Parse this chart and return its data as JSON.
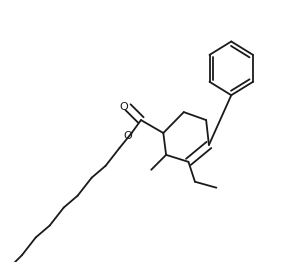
{
  "bg_color": "#ffffff",
  "line_color": "#1a1a1a",
  "line_width": 1.3,
  "fig_width": 2.81,
  "fig_height": 2.63,
  "dpi": 100
}
